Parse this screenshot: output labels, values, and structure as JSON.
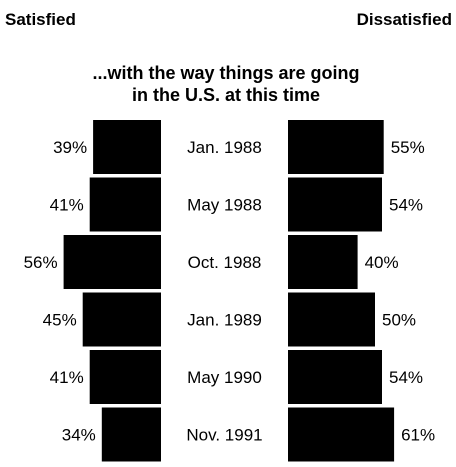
{
  "chart_data": {
    "type": "bar",
    "title": "...with the way things are going in the U.S. at this time",
    "title_lines": [
      "...with the way things are going",
      "in the U.S. at this time"
    ],
    "categories": [
      "Jan. 1988",
      "May 1988",
      "Oct. 1988",
      "Jan. 1989",
      "May 1990",
      "Nov. 1991"
    ],
    "series": [
      {
        "name": "Satisfied",
        "values": [
          39,
          41,
          56,
          45,
          41,
          34
        ],
        "labels": [
          "39%",
          "41%",
          "56%",
          "45%",
          "41%",
          "34%"
        ],
        "direction": "left",
        "color": "#000000"
      },
      {
        "name": "Dissatisfied",
        "values": [
          55,
          54,
          40,
          50,
          54,
          61
        ],
        "labels": [
          "55%",
          "54%",
          "40%",
          "50%",
          "54%",
          "61%"
        ],
        "direction": "right",
        "color": "#000000"
      }
    ],
    "unit": "%",
    "grid": false,
    "legend": "top"
  }
}
